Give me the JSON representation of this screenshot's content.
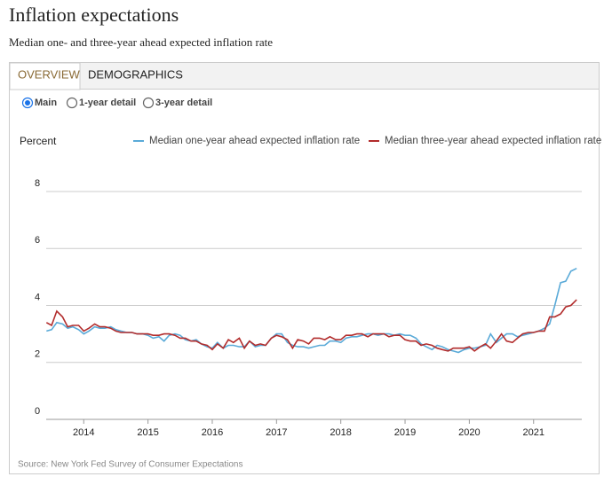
{
  "header": {
    "title": "Inflation expectations",
    "subtitle": "Median one- and three-year ahead expected inflation rate"
  },
  "tabs": [
    "OVERVIEW",
    "DEMOGRAPHICS"
  ],
  "options": [
    "Main",
    "1-year detail",
    "3-year detail"
  ],
  "chart_data": {
    "type": "line",
    "ylabel": "Percent",
    "x": [
      2013.42,
      2013.5,
      2013.58,
      2013.67,
      2013.75,
      2013.83,
      2013.92,
      2014,
      2014.08,
      2014.17,
      2014.25,
      2014.33,
      2014.42,
      2014.5,
      2014.58,
      2014.67,
      2014.75,
      2014.83,
      2014.92,
      2015,
      2015.08,
      2015.17,
      2015.25,
      2015.33,
      2015.42,
      2015.5,
      2015.58,
      2015.67,
      2015.75,
      2015.83,
      2015.92,
      2016,
      2016.08,
      2016.17,
      2016.25,
      2016.33,
      2016.42,
      2016.5,
      2016.58,
      2016.67,
      2016.75,
      2016.83,
      2016.92,
      2017,
      2017.08,
      2017.17,
      2017.25,
      2017.33,
      2017.42,
      2017.5,
      2017.58,
      2017.67,
      2017.75,
      2017.83,
      2017.92,
      2018,
      2018.08,
      2018.17,
      2018.25,
      2018.33,
      2018.42,
      2018.5,
      2018.58,
      2018.67,
      2018.75,
      2018.83,
      2018.92,
      2019,
      2019.08,
      2019.17,
      2019.25,
      2019.33,
      2019.42,
      2019.5,
      2019.58,
      2019.67,
      2019.75,
      2019.83,
      2019.92,
      2020,
      2020.08,
      2020.17,
      2020.25,
      2020.33,
      2020.42,
      2020.5,
      2020.58,
      2020.67,
      2020.75,
      2020.83,
      2020.92,
      2021,
      2021.08,
      2021.17,
      2021.25,
      2021.33,
      2021.42,
      2021.5,
      2021.58,
      2021.67
    ],
    "series": [
      {
        "name": "Median one-year ahead expected inflation rate",
        "color": "#5aaad8",
        "values": [
          3.1,
          3.15,
          3.4,
          3.35,
          3.2,
          3.25,
          3.15,
          3.0,
          3.1,
          3.25,
          3.2,
          3.2,
          3.25,
          3.15,
          3.1,
          3.05,
          3.05,
          3.0,
          3.0,
          2.95,
          2.85,
          2.9,
          2.75,
          2.95,
          3.0,
          2.95,
          2.8,
          2.75,
          2.8,
          2.65,
          2.55,
          2.5,
          2.7,
          2.5,
          2.6,
          2.6,
          2.55,
          2.55,
          2.75,
          2.55,
          2.6,
          2.6,
          2.85,
          3.0,
          3.0,
          2.7,
          2.6,
          2.55,
          2.55,
          2.5,
          2.55,
          2.6,
          2.6,
          2.75,
          2.75,
          2.7,
          2.85,
          2.9,
          2.9,
          2.95,
          3.0,
          3.0,
          2.95,
          3.0,
          3.0,
          2.95,
          3.0,
          2.95,
          2.95,
          2.85,
          2.65,
          2.55,
          2.45,
          2.6,
          2.55,
          2.45,
          2.4,
          2.35,
          2.45,
          2.5,
          2.5,
          2.55,
          2.6,
          3.0,
          2.7,
          2.85,
          3.0,
          3.0,
          2.9,
          2.95,
          3.0,
          3.05,
          3.1,
          3.2,
          3.35,
          4.0,
          4.8,
          4.85,
          5.2,
          5.3
        ]
      },
      {
        "name": "Median three-year ahead expected inflation rate",
        "color": "#b22c2c",
        "values": [
          3.4,
          3.3,
          3.8,
          3.6,
          3.25,
          3.3,
          3.3,
          3.1,
          3.2,
          3.35,
          3.25,
          3.25,
          3.2,
          3.1,
          3.05,
          3.05,
          3.05,
          3.0,
          3.0,
          3.0,
          2.95,
          2.95,
          3.0,
          3.0,
          2.95,
          2.85,
          2.85,
          2.75,
          2.75,
          2.65,
          2.6,
          2.45,
          2.65,
          2.5,
          2.8,
          2.7,
          2.85,
          2.5,
          2.75,
          2.6,
          2.65,
          2.6,
          2.85,
          2.95,
          2.9,
          2.8,
          2.5,
          2.8,
          2.75,
          2.65,
          2.85,
          2.85,
          2.8,
          2.9,
          2.8,
          2.8,
          2.95,
          2.95,
          3.0,
          3.0,
          2.9,
          3.0,
          3.0,
          3.0,
          2.9,
          2.95,
          2.95,
          2.8,
          2.75,
          2.75,
          2.6,
          2.65,
          2.6,
          2.5,
          2.45,
          2.4,
          2.5,
          2.5,
          2.5,
          2.55,
          2.4,
          2.55,
          2.65,
          2.5,
          2.75,
          3.0,
          2.75,
          2.7,
          2.85,
          3.0,
          3.05,
          3.05,
          3.1,
          3.1,
          3.6,
          3.6,
          3.7,
          3.95,
          4.0,
          4.2
        ]
      }
    ],
    "xlim": [
      2013.25,
      2021.75
    ],
    "xticks": [
      2014,
      2015,
      2016,
      2017,
      2018,
      2019,
      2020,
      2021
    ],
    "ylim": [
      0,
      8
    ],
    "yticks": [
      0,
      2,
      4,
      6,
      8
    ],
    "grid": true
  },
  "source": "Source: New York Fed Survey of Consumer Expectations"
}
